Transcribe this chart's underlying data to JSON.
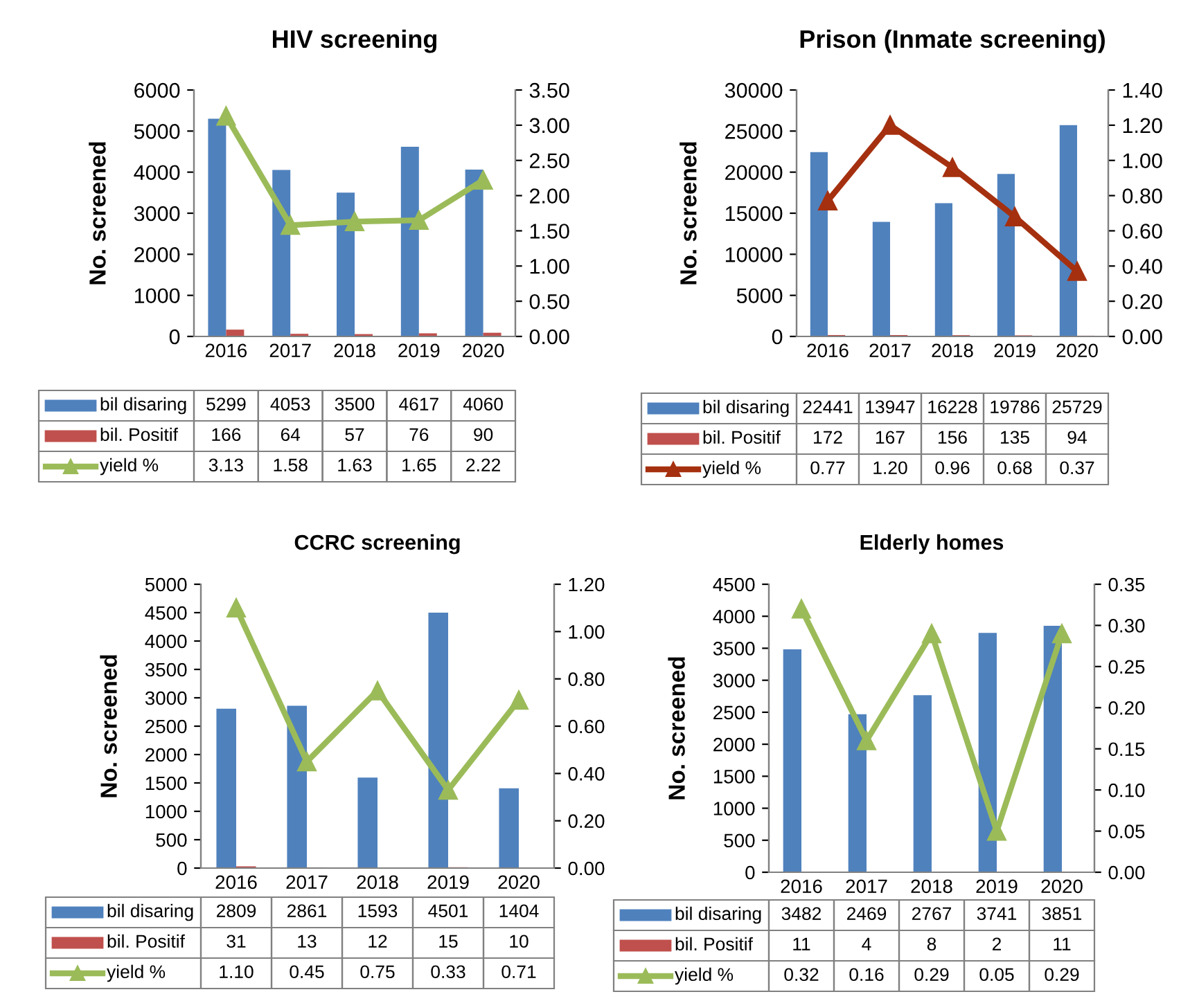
{
  "chart_data": [
    {
      "type": "bar",
      "title": "HIV screening",
      "ylabel": "No. screened",
      "categories": [
        "2016",
        "2017",
        "2018",
        "2019",
        "2020"
      ],
      "legend": "bottom",
      "marker": "triangle",
      "ylim": [
        0,
        6000
      ],
      "yticks": [
        0,
        1000,
        2000,
        3000,
        4000,
        5000,
        6000
      ],
      "y2lim": [
        0,
        3.5
      ],
      "y2ticks": [
        {
          "value": 0,
          "label": "0.00"
        },
        {
          "value": 0.5,
          "label": "0.50"
        },
        {
          "value": 1,
          "label": "1.00"
        },
        {
          "value": 1.5,
          "label": "1.50"
        },
        {
          "value": 2,
          "label": "2.00"
        },
        {
          "value": 2.5,
          "label": "2.50"
        },
        {
          "value": 3,
          "label": "3.00"
        },
        {
          "value": 3.5,
          "label": "3.50"
        }
      ],
      "series": [
        {
          "name": "bil disaring",
          "color": "#4f81bd",
          "values": [
            5299,
            4053,
            3500,
            4617,
            4060
          ],
          "value_labels": [
            "5299",
            "4053",
            "3500",
            "4617",
            "4060"
          ]
        },
        {
          "name": "bil. Positif",
          "color": "#c0504d",
          "values": [
            166,
            64,
            57,
            76,
            90
          ],
          "value_labels": [
            "166",
            "64",
            "57",
            "76",
            "90"
          ]
        },
        {
          "name": "yield %",
          "type": "line",
          "axis": "y2",
          "color": "#9bbb59",
          "values": [
            3.13,
            1.58,
            1.63,
            1.65,
            2.22
          ],
          "value_labels": [
            "3.13",
            "1.58",
            "1.63",
            "1.65",
            "2.22"
          ]
        }
      ]
    },
    {
      "type": "bar",
      "title": "Prison (Inmate screening)",
      "ylabel": "No. screened",
      "categories": [
        "2016",
        "2017",
        "2018",
        "2019",
        "2020"
      ],
      "legend": "bottom",
      "marker": "triangle",
      "ylim": [
        0,
        30000
      ],
      "yticks": [
        0,
        5000,
        10000,
        15000,
        20000,
        25000,
        30000
      ],
      "y2lim": [
        0,
        1.4
      ],
      "y2ticks": [
        {
          "value": 0,
          "label": "0.00"
        },
        {
          "value": 0.2,
          "label": "0.20"
        },
        {
          "value": 0.4,
          "label": "0.40"
        },
        {
          "value": 0.6,
          "label": "0.60"
        },
        {
          "value": 0.8,
          "label": "0.80"
        },
        {
          "value": 1.0,
          "label": "1.00"
        },
        {
          "value": 1.2,
          "label": "1.20"
        },
        {
          "value": 1.4,
          "label": "1.40"
        }
      ],
      "series": [
        {
          "name": "bil disaring",
          "color": "#4f81bd",
          "values": [
            22441,
            13947,
            16228,
            19786,
            25729
          ],
          "value_labels": [
            "22441",
            "13947",
            "16228",
            "19786",
            "25729"
          ]
        },
        {
          "name": "bil. Positif",
          "color": "#c0504d",
          "values": [
            172,
            167,
            156,
            135,
            94
          ],
          "value_labels": [
            "172",
            "167",
            "156",
            "135",
            "94"
          ]
        },
        {
          "name": "yield %",
          "type": "line",
          "axis": "y2",
          "color": "#a5300f",
          "values": [
            0.77,
            1.2,
            0.96,
            0.68,
            0.37
          ],
          "value_labels": [
            "0.77",
            "1.20",
            "0.96",
            "0.68",
            "0.37"
          ]
        }
      ]
    },
    {
      "type": "bar",
      "title": "CCRC screening",
      "ylabel": "No. screened",
      "categories": [
        "2016",
        "2017",
        "2018",
        "2019",
        "2020"
      ],
      "legend": "bottom",
      "marker": "triangle",
      "ylim": [
        0,
        5000
      ],
      "yticks": [
        0,
        500,
        1000,
        1500,
        2000,
        2500,
        3000,
        3500,
        4000,
        4500,
        5000
      ],
      "y2lim": [
        0,
        1.2
      ],
      "y2ticks": [
        {
          "value": 0,
          "label": "0.00"
        },
        {
          "value": 0.2,
          "label": "0.20"
        },
        {
          "value": 0.4,
          "label": "0.40"
        },
        {
          "value": 0.6,
          "label": "0.60"
        },
        {
          "value": 0.8,
          "label": "0.80"
        },
        {
          "value": 1.0,
          "label": "1.00"
        },
        {
          "value": 1.2,
          "label": "1.20"
        }
      ],
      "series": [
        {
          "name": "bil disaring",
          "color": "#4f81bd",
          "values": [
            2809,
            2861,
            1593,
            4501,
            1404
          ],
          "value_labels": [
            "2809",
            "2861",
            "1593",
            "4501",
            "1404"
          ]
        },
        {
          "name": "bil. Positif",
          "color": "#c0504d",
          "values": [
            31,
            13,
            12,
            15,
            10
          ],
          "value_labels": [
            "31",
            "13",
            "12",
            "15",
            "10"
          ]
        },
        {
          "name": "yield %",
          "type": "line",
          "axis": "y2",
          "color": "#9bbb59",
          "values": [
            1.1,
            0.45,
            0.75,
            0.33,
            0.71
          ],
          "value_labels": [
            "1.10",
            "0.45",
            "0.75",
            "0.33",
            "0.71"
          ]
        }
      ]
    },
    {
      "type": "bar",
      "title": "Elderly homes",
      "ylabel": "No. screened",
      "categories": [
        "2016",
        "2017",
        "2018",
        "2019",
        "2020"
      ],
      "legend": "bottom",
      "marker": "triangle",
      "ylim": [
        0,
        4500
      ],
      "yticks": [
        0,
        500,
        1000,
        1500,
        2000,
        2500,
        3000,
        3500,
        4000,
        4500
      ],
      "y2lim": [
        0,
        0.35
      ],
      "y2ticks": [
        {
          "value": 0,
          "label": "0.00"
        },
        {
          "value": 0.05,
          "label": "0.05"
        },
        {
          "value": 0.1,
          "label": "0.10"
        },
        {
          "value": 0.15,
          "label": "0.15"
        },
        {
          "value": 0.2,
          "label": "0.20"
        },
        {
          "value": 0.25,
          "label": "0.25"
        },
        {
          "value": 0.3,
          "label": "0.30"
        },
        {
          "value": 0.35,
          "label": "0.35"
        }
      ],
      "series": [
        {
          "name": "bil disaring",
          "color": "#4f81bd",
          "values": [
            3482,
            2469,
            2767,
            3741,
            3851
          ],
          "value_labels": [
            "3482",
            "2469",
            "2767",
            "3741",
            "3851"
          ]
        },
        {
          "name": "bil. Positif",
          "color": "#c0504d",
          "values": [
            11,
            4,
            8,
            2,
            11
          ],
          "value_labels": [
            "11",
            "4",
            "8",
            "2",
            "11"
          ]
        },
        {
          "name": "yield %",
          "type": "line",
          "axis": "y2",
          "color": "#9bbb59",
          "values": [
            0.32,
            0.16,
            0.29,
            0.05,
            0.29
          ],
          "value_labels": [
            "0.32",
            "0.16",
            "0.29",
            "0.05",
            "0.29"
          ]
        }
      ]
    }
  ]
}
